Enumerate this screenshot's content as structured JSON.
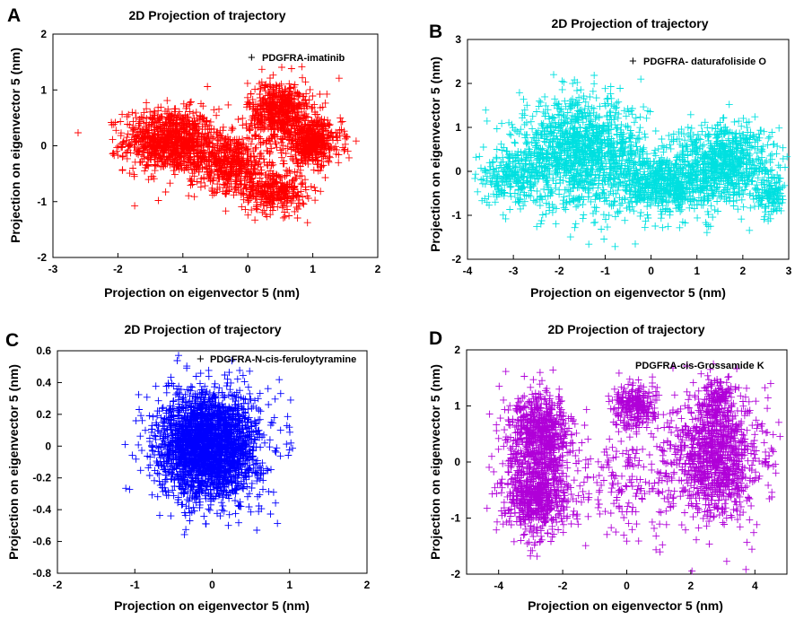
{
  "chart_data": [
    {
      "panel": "A",
      "type": "scatter",
      "title": "2D Projection of trajectory",
      "xlabel": "Projection on eigenvector 5 (nm)",
      "ylabel": "Projection on eigenvector 5 (nm)",
      "xlim": [
        -3,
        2
      ],
      "ylim": [
        -2,
        2
      ],
      "xticks": [
        "-3",
        "-2",
        "-1",
        "0",
        "1",
        "2"
      ],
      "yticks": [
        "-2",
        "-1",
        "0",
        "1",
        "2"
      ],
      "legend": "top-right",
      "grid": false,
      "series": [
        {
          "name": "PDGFRA-imatinib",
          "color": "#ff0000",
          "marker": "+",
          "clusters": [
            {
              "cx": -1.2,
              "cy": 0.1,
              "sx": 0.35,
              "sy": 0.28,
              "n": 900
            },
            {
              "cx": -0.3,
              "cy": -0.3,
              "sx": 0.3,
              "sy": 0.25,
              "n": 500
            },
            {
              "cx": 0.4,
              "cy": -0.8,
              "sx": 0.25,
              "sy": 0.2,
              "n": 350
            },
            {
              "cx": 0.5,
              "cy": 0.6,
              "sx": 0.25,
              "sy": 0.28,
              "n": 600
            },
            {
              "cx": 1.0,
              "cy": 0.05,
              "sx": 0.22,
              "sy": 0.2,
              "n": 450
            }
          ]
        }
      ]
    },
    {
      "panel": "B",
      "type": "scatter",
      "title": "2D Projection of trajectory",
      "xlabel": "Projection on eigenvector 5 (nm)",
      "ylabel": "Projection on eigenvector 5 (nm)",
      "xlim": [
        -4,
        3
      ],
      "ylim": [
        -2,
        3
      ],
      "xticks": [
        "-4",
        "-3",
        "-2",
        "-1",
        "0",
        "1",
        "2",
        "3"
      ],
      "yticks": [
        "-2",
        "-1",
        "0",
        "1",
        "2",
        "3"
      ],
      "legend": "top-right",
      "grid": false,
      "series": [
        {
          "name": "PDGFRA- daturafoliside O",
          "color": "#00e0e0",
          "marker": "+",
          "clusters": [
            {
              "cx": -1.5,
              "cy": 0.4,
              "sx": 0.7,
              "sy": 0.6,
              "n": 1300
            },
            {
              "cx": -3.0,
              "cy": -0.1,
              "sx": 0.4,
              "sy": 0.3,
              "n": 250
            },
            {
              "cx": 0.3,
              "cy": -0.3,
              "sx": 0.5,
              "sy": 0.35,
              "n": 600
            },
            {
              "cx": 1.6,
              "cy": 0.2,
              "sx": 0.55,
              "sy": 0.45,
              "n": 800
            },
            {
              "cx": 2.6,
              "cy": -0.6,
              "sx": 0.15,
              "sy": 0.25,
              "n": 100
            }
          ]
        }
      ]
    },
    {
      "panel": "C",
      "type": "scatter",
      "title": "2D Projection of trajectory",
      "xlabel": "Projection on eigenvector 5 (nm)",
      "ylabel": "Projection on eigenvector 5 (nm)",
      "xlim": [
        -2,
        2
      ],
      "ylim": [
        -0.8,
        0.6
      ],
      "xticks": [
        "-2",
        "-1",
        "0",
        "1",
        "2"
      ],
      "yticks": [
        "-0.8",
        "-0.6",
        "-0.4",
        "-0.2",
        "0",
        "0.2",
        "0.4",
        "0.6"
      ],
      "legend": "top-right",
      "grid": false,
      "series": [
        {
          "name": "PDGFRA-N-cis-feruloytyramine",
          "color": "#0000ff",
          "marker": "+",
          "clusters": [
            {
              "cx": -0.05,
              "cy": 0.0,
              "sx": 0.33,
              "sy": 0.17,
              "n": 2400
            }
          ]
        }
      ]
    },
    {
      "panel": "D",
      "type": "scatter",
      "title": "2D Projection of trajectory",
      "xlabel": "Projection on eigenvector 5 (nm)",
      "ylabel": "Projection on eigenvector 5 (nm)",
      "xlim": [
        -5,
        5
      ],
      "ylim": [
        -2,
        2
      ],
      "xticks": [
        "-4",
        "-2",
        "0",
        "2",
        "4"
      ],
      "yticks": [
        "-2",
        "-1",
        "0",
        "1",
        "2"
      ],
      "legend": "top-right",
      "grid": false,
      "series": [
        {
          "name": "PDGFRA-cis-Grossamide K",
          "color": "#b000d8",
          "marker": "+",
          "clusters": [
            {
              "cx": -2.7,
              "cy": 0.5,
              "sx": 0.5,
              "sy": 0.35,
              "n": 650
            },
            {
              "cx": -2.8,
              "cy": -0.6,
              "sx": 0.5,
              "sy": 0.35,
              "n": 650
            },
            {
              "cx": 0.3,
              "cy": 1.0,
              "sx": 0.35,
              "sy": 0.2,
              "n": 250
            },
            {
              "cx": 2.8,
              "cy": 0.1,
              "sx": 0.7,
              "sy": 0.55,
              "n": 1000
            },
            {
              "cx": 2.8,
              "cy": 1.1,
              "sx": 0.25,
              "sy": 0.2,
              "n": 120
            },
            {
              "cx": 0.0,
              "cy": -0.4,
              "sx": 1.0,
              "sy": 0.5,
              "n": 200
            }
          ]
        }
      ]
    }
  ]
}
